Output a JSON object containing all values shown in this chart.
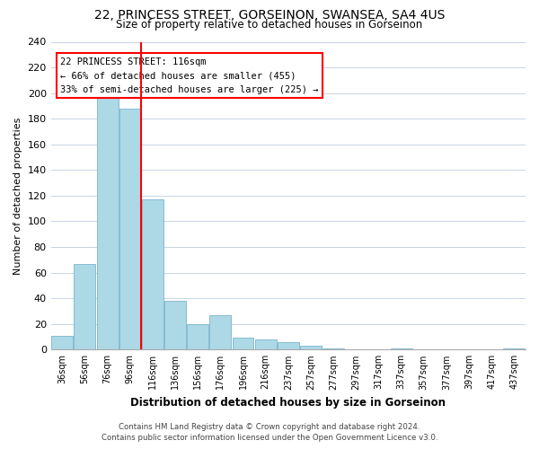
{
  "title": "22, PRINCESS STREET, GORSEINON, SWANSEA, SA4 4US",
  "subtitle": "Size of property relative to detached houses in Gorseinon",
  "xlabel": "Distribution of detached houses by size in Gorseinon",
  "ylabel": "Number of detached properties",
  "bar_labels": [
    "36sqm",
    "56sqm",
    "76sqm",
    "96sqm",
    "116sqm",
    "136sqm",
    "156sqm",
    "176sqm",
    "196sqm",
    "216sqm",
    "237sqm",
    "257sqm",
    "277sqm",
    "297sqm",
    "317sqm",
    "337sqm",
    "357sqm",
    "377sqm",
    "397sqm",
    "417sqm",
    "437sqm"
  ],
  "bar_values": [
    11,
    67,
    200,
    188,
    117,
    38,
    20,
    27,
    9,
    8,
    6,
    3,
    1,
    0,
    0,
    1,
    0,
    0,
    0,
    0,
    1
  ],
  "bar_color": "#add8e6",
  "bar_edge_color": "#7ab5cc",
  "property_line_label": "22 PRINCESS STREET: 116sqm",
  "annotation_line1": "← 66% of detached houses are smaller (455)",
  "annotation_line2": "33% of semi-detached houses are larger (225) →",
  "red_line_x": 3.5,
  "ylim": [
    0,
    240
  ],
  "yticks": [
    0,
    20,
    40,
    60,
    80,
    100,
    120,
    140,
    160,
    180,
    200,
    220,
    240
  ],
  "footer_line1": "Contains HM Land Registry data © Crown copyright and database right 2024.",
  "footer_line2": "Contains public sector information licensed under the Open Government Licence v3.0.",
  "bg_color": "#ffffff",
  "grid_color": "#c8d4e4"
}
